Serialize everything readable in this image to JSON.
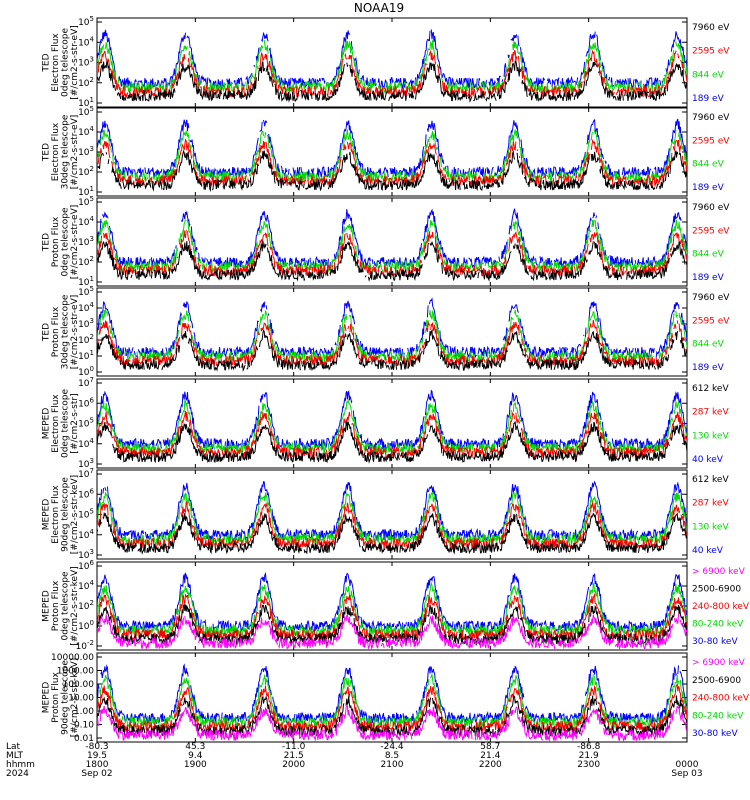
{
  "title": "NOAA19",
  "colors": {
    "black": "#000000",
    "blue": "#0000ff",
    "red": "#ff0000",
    "green": "#00dd00",
    "magenta": "#ff00ff"
  },
  "chart_data": [
    {
      "type": "line",
      "panel": "ted-electron-0deg",
      "ylabel": [
        "TED",
        "Electron Flux",
        "0deg telescope",
        "[#/cm2-s-str-eV]"
      ],
      "y_scale": "log",
      "ylim_exponent": [
        0,
        5
      ],
      "ytick_labels": [
        "10^5",
        "10^4",
        "10^3",
        "10^2",
        "10^1"
      ],
      "legend": [
        {
          "label": "7960 eV",
          "color": "black"
        },
        {
          "label": "2595 eV",
          "color": "red"
        },
        {
          "label": "844 eV",
          "color": "green"
        },
        {
          "label": "189 eV",
          "color": "blue"
        }
      ]
    },
    {
      "type": "line",
      "panel": "ted-electron-30deg",
      "ylabel": [
        "TED",
        "Electron Flux",
        "30deg telescope",
        "[#/cm2-s-str-eV]"
      ],
      "y_scale": "log",
      "ylim_exponent": [
        0,
        5
      ],
      "ytick_labels": [
        "10^5",
        "10^4",
        "10^3",
        "10^2",
        "10^1"
      ],
      "legend": [
        {
          "label": "7960 eV",
          "color": "black"
        },
        {
          "label": "2595 eV",
          "color": "red"
        },
        {
          "label": "844 eV",
          "color": "green"
        },
        {
          "label": "189 eV",
          "color": "blue"
        }
      ]
    },
    {
      "type": "line",
      "panel": "ted-proton-0deg",
      "ylabel": [
        "TED",
        "Proton Flux",
        "0deg telescope",
        "[#/cm2-s-str-eV]"
      ],
      "y_scale": "log",
      "ylim_exponent": [
        0,
        5
      ],
      "ytick_labels": [
        "10^5",
        "10^4",
        "10^3",
        "10^2",
        "10^1"
      ],
      "legend": [
        {
          "label": "7960 eV",
          "color": "black"
        },
        {
          "label": "2595 eV",
          "color": "red"
        },
        {
          "label": "844 eV",
          "color": "green"
        },
        {
          "label": "189 eV",
          "color": "blue"
        }
      ]
    },
    {
      "type": "line",
      "panel": "ted-proton-30deg",
      "ylabel": [
        "TED",
        "Proton Flux",
        "30deg telescope",
        "[#/cm2-s-str-eV]"
      ],
      "y_scale": "log",
      "ylim_exponent": [
        0,
        5
      ],
      "ytick_labels": [
        "10^5",
        "10^4",
        "10^3",
        "10^2",
        "10^1",
        "10^0"
      ],
      "legend": [
        {
          "label": "7960 eV",
          "color": "black"
        },
        {
          "label": "2595 eV",
          "color": "red"
        },
        {
          "label": "844 eV",
          "color": "green"
        },
        {
          "label": "189 eV",
          "color": "blue"
        }
      ]
    },
    {
      "type": "line",
      "panel": "meped-electron-0deg",
      "ylabel": [
        "MEPED",
        "Electron Flux",
        "0deg telescope",
        "[#/cm2-s-str]"
      ],
      "y_scale": "log",
      "ylim_exponent": [
        2,
        7
      ],
      "ytick_labels": [
        "10^7",
        "10^6",
        "10^5",
        "10^4",
        "10^3"
      ],
      "legend": [
        {
          "label": "612 keV",
          "color": "black"
        },
        {
          "label": "287 keV",
          "color": "red"
        },
        {
          "label": "130 keV",
          "color": "green"
        },
        {
          "label": "40 keV",
          "color": "blue"
        }
      ]
    },
    {
      "type": "line",
      "panel": "meped-electron-90deg",
      "ylabel": [
        "MEPED",
        "Electron Flux",
        "90deg telescope",
        "[#/cm2-s-str-keV]"
      ],
      "y_scale": "log",
      "ylim_exponent": [
        2,
        7
      ],
      "ytick_labels": [
        "10^7",
        "10^6",
        "10^5",
        "10^4",
        "10^3"
      ],
      "legend": [
        {
          "label": "612 keV",
          "color": "black"
        },
        {
          "label": "287 keV",
          "color": "red"
        },
        {
          "label": "130 keV",
          "color": "green"
        },
        {
          "label": "40 keV",
          "color": "blue"
        }
      ]
    },
    {
      "type": "line",
      "panel": "meped-proton-0deg",
      "ylabel": [
        "MEPED",
        "Proton Flux",
        "0deg telescope",
        "[#/cm2-s-str-keV]"
      ],
      "y_scale": "log",
      "ylim_exponent": [
        -3,
        7
      ],
      "ytick_labels": [
        "10^6",
        "10^4",
        "10^2",
        "10^0",
        "10^-2"
      ],
      "legend": [
        {
          "label": "> 6900 keV",
          "color": "magenta"
        },
        {
          "label": "2500-6900",
          "color": "black"
        },
        {
          "label": "240-800 keV",
          "color": "red"
        },
        {
          "label": "80-240 keV",
          "color": "green"
        },
        {
          "label": "30-80 keV",
          "color": "blue"
        }
      ]
    },
    {
      "type": "line",
      "panel": "meped-proton-90deg",
      "ylabel": [
        "MEPED",
        "Proton Flux",
        "90deg telescope",
        "[#/cm2-s-str-keV]"
      ],
      "y_scale": "log",
      "ylim_exponent": [
        -3,
        4.5
      ],
      "ytick_labels": [
        "10000.00",
        "1000.00",
        "100.00",
        "10.00",
        "1.00",
        "0.10",
        "0.01"
      ],
      "legend": [
        {
          "label": "> 6900 keV",
          "color": "magenta"
        },
        {
          "label": "2500-6900",
          "color": "black"
        },
        {
          "label": "240-800 keV",
          "color": "red"
        },
        {
          "label": "80-240 keV",
          "color": "green"
        },
        {
          "label": "30-80 keV",
          "color": "blue"
        }
      ]
    }
  ],
  "x_axis": {
    "row_labels": [
      "Lat",
      "MLT",
      "hhmm",
      "2024"
    ],
    "ticks": [
      {
        "hours": 0,
        "lat": "-80.3",
        "mlt": "19.5",
        "hhmm": "1800",
        "date": "Sep 02"
      },
      {
        "hours": 1,
        "lat": "45.3",
        "mlt": "9.4",
        "hhmm": "1900",
        "date": ""
      },
      {
        "hours": 2,
        "lat": "-11.0",
        "mlt": "21.5",
        "hhmm": "2000",
        "date": ""
      },
      {
        "hours": 3,
        "lat": "-24.4",
        "mlt": "8.5",
        "hhmm": "2100",
        "date": ""
      },
      {
        "hours": 4,
        "lat": "58.7",
        "mlt": "21.4",
        "hhmm": "2200",
        "date": ""
      },
      {
        "hours": 5,
        "lat": "-86.8",
        "mlt": "21.9",
        "hhmm": "2300",
        "date": ""
      },
      {
        "hours": 6,
        "lat": "",
        "mlt": "",
        "hhmm": "0000",
        "date": "Sep 03"
      }
    ]
  }
}
